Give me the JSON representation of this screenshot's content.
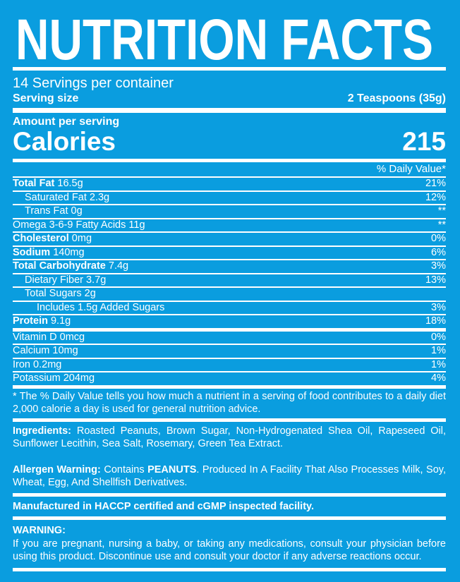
{
  "header": {
    "title": "NUTRITION FACTS",
    "servings": "14 Servings per container",
    "serving_size_label": "Serving size",
    "serving_size": "2 Teaspoons (35g)",
    "amount_per_serving": "Amount per serving",
    "calories_label": "Calories",
    "calories": "215",
    "daily_value_header": "% Daily Value*"
  },
  "nutrients": [
    {
      "name": "Total Fat",
      "amount": "16.5g",
      "dv": "21%"
    },
    {
      "name": "Saturated Fat",
      "amount": "2.3g",
      "dv": "12%"
    },
    {
      "name": "Trans Fat",
      "amount": "0g",
      "dv": "**"
    },
    {
      "name": "Omega 3-6-9 Fatty Acids",
      "amount": "11g",
      "dv": "**"
    },
    {
      "name": "Cholesterol",
      "amount": "0mg",
      "dv": "0%"
    },
    {
      "name": "Sodium",
      "amount": "140mg",
      "dv": "6%"
    },
    {
      "name": "Total Carbohydrate",
      "amount": "7.4g",
      "dv": "3%"
    },
    {
      "name": "Dietary Fiber",
      "amount": "3.7g",
      "dv": "13%"
    },
    {
      "name": "Total Sugars",
      "amount": "2g"
    },
    {
      "name": "Includes 1.5g Added Sugars",
      "dv": "3%"
    },
    {
      "name": "Protein",
      "amount": "9.1g",
      "dv": "18%"
    },
    {
      "name": "Vitamin D",
      "amount": "0mcg",
      "dv": "0%"
    },
    {
      "name": "Calcium",
      "amount": "10mg",
      "dv": "1%"
    },
    {
      "name": "Iron",
      "amount": "0.2mg",
      "dv": "1%"
    },
    {
      "name": "Potassium",
      "amount": "204mg",
      "dv": "4%"
    }
  ],
  "footnote": "* The % Daily Value tells you how much a nutrient in a serving of food contributes to a daily diet 2,000 calorie a day is used for general nutrition advice.",
  "ingredients": {
    "label": "Ingredients:",
    "text": "Roasted Peanuts, Brown Sugar, Non-Hydrogenated Shea Oil, Rapeseed Oil, Sunflower Lecithin, Sea Salt, Rosemary, Green Tea Extract."
  },
  "allergen": {
    "label": "Allergen Warning:",
    "text_before": "Contains",
    "emphasis": "PEANUTS",
    "text_after": ". Produced In A Facility That Also Processes Milk, Soy, Wheat, Egg,  And Shellfish Derivatives."
  },
  "manufactured": "Manufactured in HACCP certified and cGMP inspected facility.",
  "warning": {
    "label": "WARNING:",
    "text": "If you are pregnant, nursing a baby, or taking any medications, consult your physician before using this product. Discontinue use and consult your doctor if any adverse reactions occur."
  }
}
